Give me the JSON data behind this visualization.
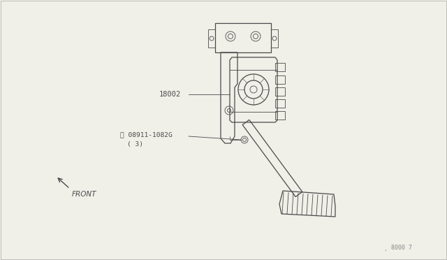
{
  "background_color": "#f0efe8",
  "line_color": "#4a4a4a",
  "fig_width": 6.4,
  "fig_height": 3.72,
  "dpi": 100,
  "label_18002": "18002",
  "label_bolt": "ⓓ 08911-1082G",
  "label_bolt2": "( 3)",
  "label_front": "FRONT",
  "label_ref": "¸ 8000 7"
}
